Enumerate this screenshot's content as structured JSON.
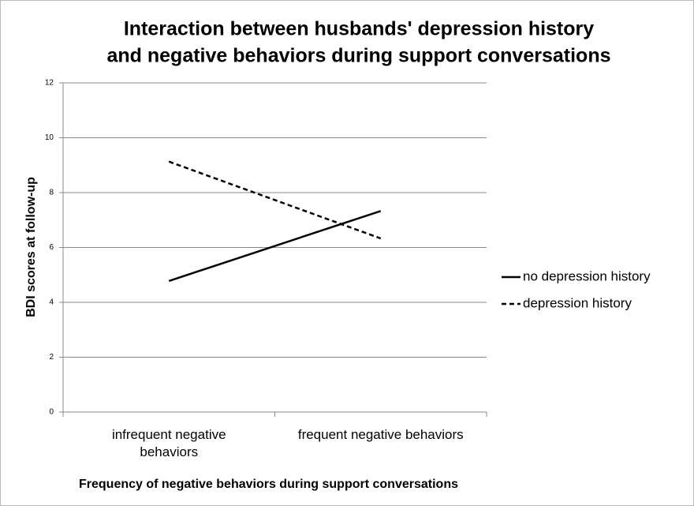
{
  "chart_data": {
    "type": "line",
    "title": [
      "Interaction between husbands' depression history",
      "and negative behaviors during  support conversations"
    ],
    "x_label": "Frequency of negative behaviors during support conversations",
    "y_label": "BDI scores at follow-up",
    "categories": [
      "infrequent negative behaviors",
      "frequent negative behaviors"
    ],
    "series": [
      {
        "name": "no depression history",
        "color": "#000000",
        "dash": "solid",
        "values": [
          4.78,
          7.33
        ]
      },
      {
        "name": "depression history",
        "color": "#000000",
        "dash": "dashed",
        "values": [
          9.13,
          6.33
        ]
      }
    ],
    "ylim": [
      0,
      12
    ],
    "yticks": [
      0,
      2,
      4,
      6,
      8,
      10,
      12
    ],
    "grid": true,
    "legend": "right"
  }
}
